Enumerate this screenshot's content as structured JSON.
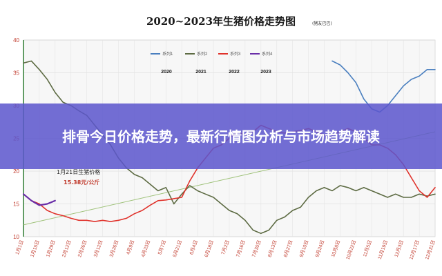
{
  "chart_data": {
    "type": "line",
    "title": "2020~2023年生猪价格走势图",
    "source_tag": "(猪友巴巴)",
    "ylim": [
      10,
      40
    ],
    "y_ticks": [
      "10",
      "15",
      "20",
      "25",
      "30",
      "35",
      "40"
    ],
    "x_tick_labels": [
      "1月1日",
      "1月15日",
      "1月29日",
      "2月12日",
      "2月26日",
      "3月12日",
      "3月26日",
      "4月9日",
      "4月23日",
      "5月7日",
      "5月21日",
      "6月4日",
      "6月18日",
      "7月2日",
      "7月16日",
      "7月30日",
      "8月13日",
      "8月27日",
      "9月10日",
      "9月24日",
      "10月8日",
      "10月22日",
      "11月5日",
      "11月19日",
      "12月3日",
      "12月17日",
      "12月31日"
    ],
    "legend": [
      {
        "label": "系列1",
        "color": "#4a7fbf",
        "year": "2020"
      },
      {
        "label": "系列2",
        "color": "#5d6b43",
        "year": "2021"
      },
      {
        "label": "系列3",
        "color": "#e0322b",
        "year": "2022"
      },
      {
        "label": "系列4",
        "color": "#6a2fa8",
        "year": "2023"
      }
    ],
    "grid": true,
    "series": [
      {
        "name": "系列1",
        "color": "#4a7fbf",
        "x": [
          1,
          2,
          3,
          4,
          5,
          6,
          7,
          8,
          9,
          10,
          11,
          12,
          13,
          14,
          15,
          16,
          17,
          18,
          19,
          20,
          21,
          22,
          23,
          24,
          25,
          26,
          27,
          28,
          29,
          30,
          31,
          32,
          33,
          34,
          35,
          36,
          37,
          38,
          39,
          40,
          41,
          42,
          43,
          44,
          45,
          46,
          47,
          48,
          49,
          50,
          51,
          52,
          53
        ],
        "y": [
          null,
          null,
          null,
          null,
          null,
          null,
          null,
          null,
          null,
          null,
          null,
          null,
          null,
          null,
          null,
          null,
          null,
          null,
          null,
          null,
          null,
          null,
          null,
          null,
          null,
          null,
          null,
          null,
          null,
          null,
          null,
          null,
          null,
          null,
          null,
          null,
          null,
          null,
          null,
          36.8,
          36.2,
          35.0,
          33.5,
          31.0,
          29.5,
          29.0,
          30.0,
          31.5,
          33.0,
          34.0,
          34.5,
          35.5,
          35.5
        ]
      },
      {
        "name": "系列2",
        "color": "#5d6b43",
        "x": [
          1,
          2,
          3,
          4,
          5,
          6,
          7,
          8,
          9,
          10,
          11,
          12,
          13,
          14,
          15,
          16,
          17,
          18,
          19,
          20,
          21,
          22,
          23,
          24,
          25,
          26,
          27,
          28,
          29,
          30,
          31,
          32,
          33,
          34,
          35,
          36,
          37,
          38,
          39,
          40,
          41,
          42,
          43,
          44,
          45,
          46,
          47,
          48,
          49,
          50,
          51,
          52,
          53
        ],
        "y": [
          36.5,
          36.8,
          35.5,
          34.0,
          32.0,
          30.5,
          30.0,
          29.2,
          28.5,
          27.0,
          25.5,
          24.0,
          22.0,
          20.5,
          19.5,
          19.0,
          18.0,
          17.0,
          17.5,
          15.0,
          16.5,
          17.8,
          17.0,
          16.5,
          16.0,
          15.0,
          14.0,
          13.5,
          12.5,
          11.0,
          10.5,
          11.0,
          12.5,
          13.0,
          14.0,
          14.5,
          16.0,
          17.0,
          17.5,
          17.0,
          17.8,
          17.5,
          17.0,
          17.5,
          17.0,
          16.5,
          16.0,
          16.5,
          16.0,
          16.0,
          16.5,
          16.2,
          16.5
        ]
      },
      {
        "name": "系列3",
        "color": "#e0322b",
        "x": [
          1,
          2,
          3,
          4,
          5,
          6,
          7,
          8,
          9,
          10,
          11,
          12,
          13,
          14,
          15,
          16,
          17,
          18,
          19,
          20,
          21,
          22,
          23,
          24,
          25,
          26,
          27,
          28,
          29,
          30,
          31,
          32,
          33,
          34,
          35,
          36,
          37,
          38,
          39,
          40,
          41,
          42,
          43,
          44,
          45,
          46,
          47,
          48,
          49,
          50,
          51,
          52,
          53
        ],
        "y": [
          16.5,
          15.5,
          15.0,
          14.0,
          13.5,
          13.2,
          12.8,
          12.5,
          12.5,
          12.3,
          12.5,
          12.3,
          12.5,
          12.8,
          13.5,
          14.0,
          14.8,
          15.5,
          15.6,
          15.8,
          16.0,
          18.5,
          20.5,
          22.0,
          23.5,
          24.0,
          25.0,
          26.0,
          25.5,
          26.0,
          27.0,
          26.5,
          26.0,
          25.8,
          26.0,
          26.2,
          26.5,
          26.0,
          25.5,
          25.5,
          26.0,
          26.5,
          26.0,
          25.0,
          24.0,
          24.0,
          23.5,
          22.5,
          21.0,
          19.0,
          17.0,
          16.0,
          17.5
        ]
      },
      {
        "name": "系列4",
        "color": "#6a2fa8",
        "x": [
          1,
          2,
          3,
          4,
          5,
          6,
          7,
          8,
          9,
          10,
          11,
          12,
          13,
          14,
          15,
          16,
          17,
          18,
          19,
          20,
          21,
          22,
          23,
          24,
          25,
          26,
          27,
          28,
          29,
          30,
          31,
          32,
          33,
          34,
          35,
          36,
          37,
          38,
          39,
          40,
          41,
          42,
          43,
          44,
          45,
          46,
          47,
          48,
          49,
          50,
          51,
          52,
          53
        ],
        "y": [
          16.5,
          15.5,
          14.8,
          15.0,
          15.5,
          null,
          null,
          null,
          null,
          null,
          null,
          null,
          null,
          null,
          null,
          null,
          null,
          null,
          null,
          null,
          null,
          null,
          null,
          null,
          null,
          null,
          null,
          null,
          null,
          null,
          null,
          null,
          null,
          null,
          null,
          null,
          null,
          null,
          null,
          null,
          null,
          null,
          null,
          null,
          null,
          null,
          null,
          null,
          null,
          null,
          null,
          null,
          null
        ]
      }
    ],
    "trendline": {
      "color": "#9fc27a",
      "from": [
        1,
        11.8
      ],
      "to": [
        53,
        26.0
      ]
    },
    "annotation": {
      "line1": "1月21日生猪价格",
      "line2": "15.38元/公斤"
    }
  },
  "banner": {
    "title": "排骨今日价格走势，最新行情图分析与市场趋势解读"
  }
}
